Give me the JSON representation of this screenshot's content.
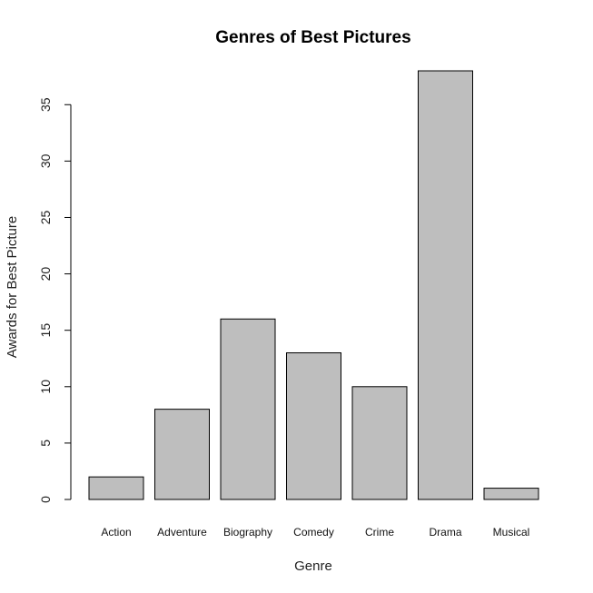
{
  "chart_data": {
    "type": "bar",
    "title": "Genres of Best Pictures",
    "xlabel": "Genre",
    "ylabel": "Awards for Best Picture",
    "categories": [
      "Action",
      "Adventure",
      "Biography",
      "Comedy",
      "Crime",
      "Drama",
      "Musical"
    ],
    "values": [
      2,
      8,
      16,
      13,
      10,
      38,
      1
    ],
    "ylim": [
      0,
      38
    ],
    "yticks": [
      0,
      5,
      10,
      15,
      20,
      25,
      30,
      35
    ],
    "grid": false,
    "legend": "none",
    "bar_color": "#bebebe",
    "bar_border_color": "#000000"
  }
}
